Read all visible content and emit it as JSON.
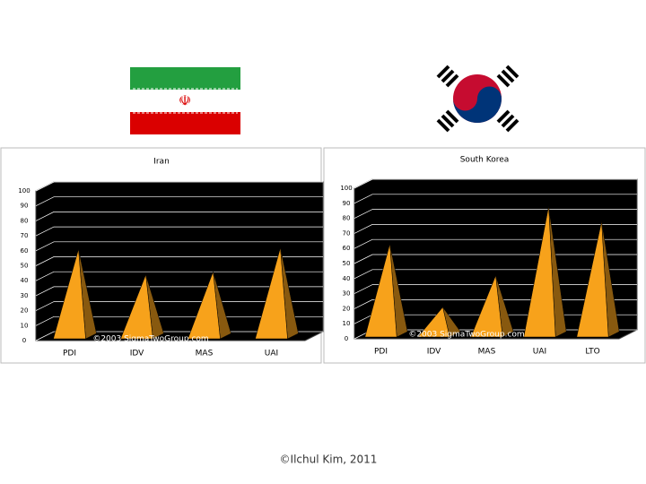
{
  "chart_data": [
    {
      "type": "pyramid",
      "title": "Iran",
      "categories": [
        "PDI",
        "IDV",
        "MAS",
        "UAI"
      ],
      "values": [
        58,
        41,
        43,
        59
      ],
      "color": "#f7a21b",
      "ylim": [
        0,
        100
      ],
      "yticks": [
        0,
        10,
        20,
        30,
        40,
        50,
        60,
        70,
        80,
        90,
        100
      ],
      "grid": true,
      "annotation": "©2003 SigmaTwoGroup.com"
    },
    {
      "type": "pyramid",
      "title": "South Korea",
      "categories": [
        "PDI",
        "IDV",
        "MAS",
        "UAI",
        "LTO"
      ],
      "values": [
        60,
        18,
        39,
        85,
        75
      ],
      "color": "#f7a21b",
      "ylim": [
        0,
        100
      ],
      "yticks": [
        0,
        10,
        20,
        30,
        40,
        50,
        60,
        70,
        80,
        90,
        100
      ],
      "grid": true,
      "annotation": "©2003 SigmaTwoGroup.com"
    }
  ],
  "footer": "©Ilchul Kim, 2011"
}
